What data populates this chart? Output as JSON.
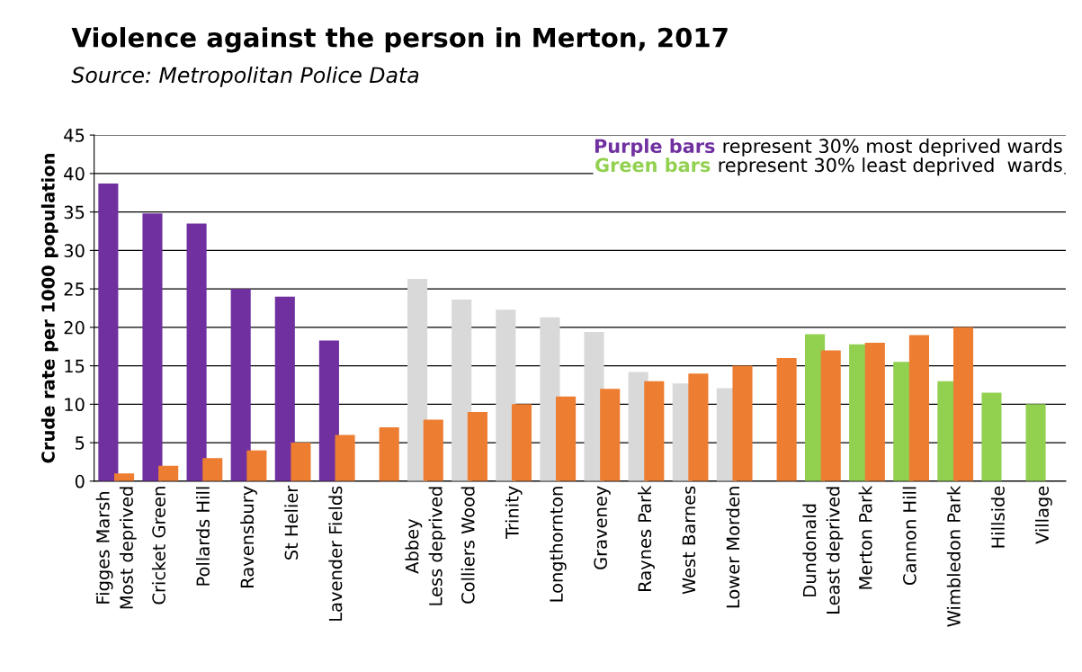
{
  "chart_data": {
    "type": "bar",
    "title": "Violence against the person in Merton, 2017",
    "subtitle": "Source: Metropolitan Police Data",
    "ylabel": "Crude rate per 1000 population",
    "categories": [
      "Figges Marsh\nMost deprived",
      "Cricket Green",
      "Pollards Hill",
      "Ravensbury",
      "St Helier",
      "Lavender Fields",
      null,
      "Abbey\nLess deprived",
      "Colliers Wood",
      "Trinity",
      "Longthornton",
      "Graveney",
      "Raynes Park",
      "West Barnes",
      "Lower Morden",
      null,
      "Dundonald\nLeast deprived",
      "Merton Park",
      "Cannon Hill",
      "Wimbledon Park",
      "Hillside",
      "Village"
    ],
    "series": [
      {
        "colors": [
          "#7030a0",
          "#7030a0",
          "#7030a0",
          "#7030a0",
          "#7030a0",
          "#7030a0",
          "#d9d9d9",
          "#d9d9d9",
          "#d9d9d9",
          "#d9d9d9",
          "#d9d9d9",
          "#d9d9d9",
          "#d9d9d9",
          "#d9d9d9",
          "#d9d9d9",
          "#92d050",
          "#92d050",
          "#92d050",
          "#92d050",
          "#92d050",
          "#92d050",
          "#92d050"
        ],
        "values": [
          38.7,
          34.8,
          33.5,
          25,
          24,
          18.3,
          null,
          26.3,
          23.6,
          22.3,
          21.3,
          19.4,
          14.2,
          12.7,
          12.1,
          null,
          19.1,
          17.8,
          15.5,
          13.0,
          11.5,
          10.0
        ]
      },
      {
        "color": "#ed7d31",
        "values": [
          1,
          2,
          3,
          4,
          5,
          6,
          7,
          8,
          9,
          10,
          11,
          12,
          13,
          14,
          15,
          16,
          17,
          18,
          19,
          20,
          null,
          null
        ]
      }
    ],
    "annotations": [
      "Purple bars",
      " represent 30% most deprived wards",
      "Green bars",
      " represent 30% least deprived  wards"
    ],
    "ylim": [
      0,
      45
    ],
    "yticks": [
      0,
      5,
      10,
      15,
      20,
      25,
      30,
      35,
      40,
      45
    ],
    "grid": "y",
    "legend": false
  }
}
